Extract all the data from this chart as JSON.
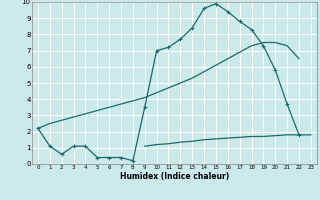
{
  "title": "",
  "xlabel": "Humidex (Indice chaleur)",
  "bg_color": "#cce9e9",
  "grid_color": "#ffffff",
  "line_color": "#1a6b6b",
  "xlim": [
    -0.5,
    23.5
  ],
  "ylim": [
    0,
    10
  ],
  "xticks": [
    0,
    1,
    2,
    3,
    4,
    5,
    6,
    7,
    8,
    9,
    10,
    11,
    12,
    13,
    14,
    15,
    16,
    17,
    18,
    19,
    20,
    21,
    22,
    23
  ],
  "yticks": [
    0,
    1,
    2,
    3,
    4,
    5,
    6,
    7,
    8,
    9,
    10
  ],
  "series1_x": [
    0,
    1,
    2,
    3,
    4,
    5,
    6,
    7,
    8,
    9,
    10,
    11,
    12,
    13,
    14,
    15,
    16,
    17,
    18,
    19,
    20,
    21,
    22
  ],
  "series1_y": [
    2.2,
    1.1,
    0.6,
    1.1,
    1.1,
    0.4,
    0.4,
    0.4,
    0.2,
    3.5,
    7.0,
    7.2,
    7.7,
    8.4,
    9.6,
    9.9,
    9.4,
    8.8,
    8.3,
    7.3,
    5.8,
    3.7,
    1.8
  ],
  "series2_x": [
    9,
    10,
    11,
    12,
    13,
    14,
    15,
    16,
    17,
    18,
    19,
    20,
    21,
    22,
    23
  ],
  "series2_y": [
    1.1,
    1.2,
    1.25,
    1.35,
    1.4,
    1.5,
    1.55,
    1.6,
    1.65,
    1.7,
    1.7,
    1.75,
    1.8,
    1.8,
    1.8
  ],
  "series3_x": [
    0,
    1,
    2,
    3,
    4,
    5,
    6,
    7,
    8,
    9,
    10,
    11,
    12,
    13,
    14,
    15,
    16,
    17,
    18,
    19,
    20,
    21,
    22
  ],
  "series3_y": [
    2.2,
    2.5,
    2.7,
    2.9,
    3.1,
    3.3,
    3.5,
    3.7,
    3.9,
    4.1,
    4.4,
    4.7,
    5.0,
    5.3,
    5.7,
    6.1,
    6.5,
    6.9,
    7.3,
    7.5,
    7.5,
    7.3,
    6.5
  ]
}
